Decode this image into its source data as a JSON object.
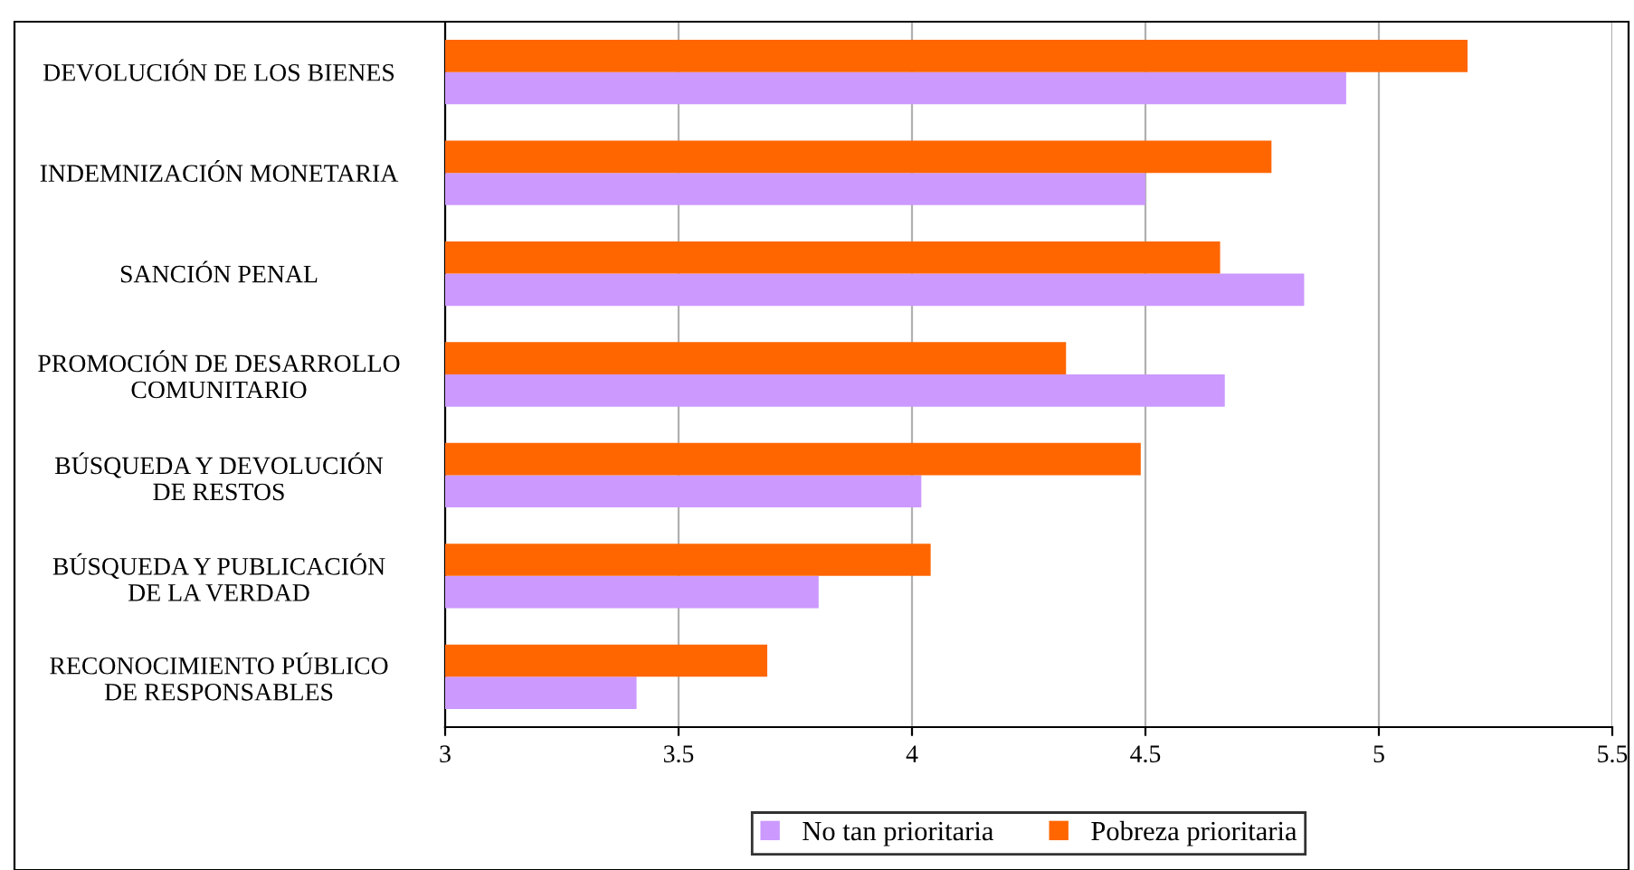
{
  "chart_data": {
    "type": "bar",
    "orientation": "horizontal",
    "categories": [
      "DEVOLUCIÓN DE LOS BIENES",
      "INDEMNIZACIÓN MONETARIA",
      "SANCIÓN PENAL",
      "PROMOCIÓN DE DESARROLLO\nCOMUNITARIO",
      "BÚSQUEDA Y DEVOLUCIÓN\nDE RESTOS",
      "BÚSQUEDA Y PUBLICACIÓN\nDE LA VERDAD",
      "RECONOCIMIENTO PÚBLICO\nDE RESPONSABLES"
    ],
    "series": [
      {
        "name": "No tan prioritaria",
        "color": "#cc99ff",
        "values": [
          4.93,
          4.5,
          4.84,
          4.67,
          4.02,
          3.8,
          3.41
        ]
      },
      {
        "name": "Pobreza prioritaria",
        "color": "#ff6600",
        "values": [
          5.19,
          4.77,
          4.66,
          4.33,
          4.49,
          4.04,
          3.69
        ]
      }
    ],
    "xlim": [
      3,
      5.5
    ],
    "xticks": [
      3,
      3.5,
      4,
      4.5,
      5,
      5.5
    ],
    "grid": "x",
    "legend": "bottom"
  }
}
